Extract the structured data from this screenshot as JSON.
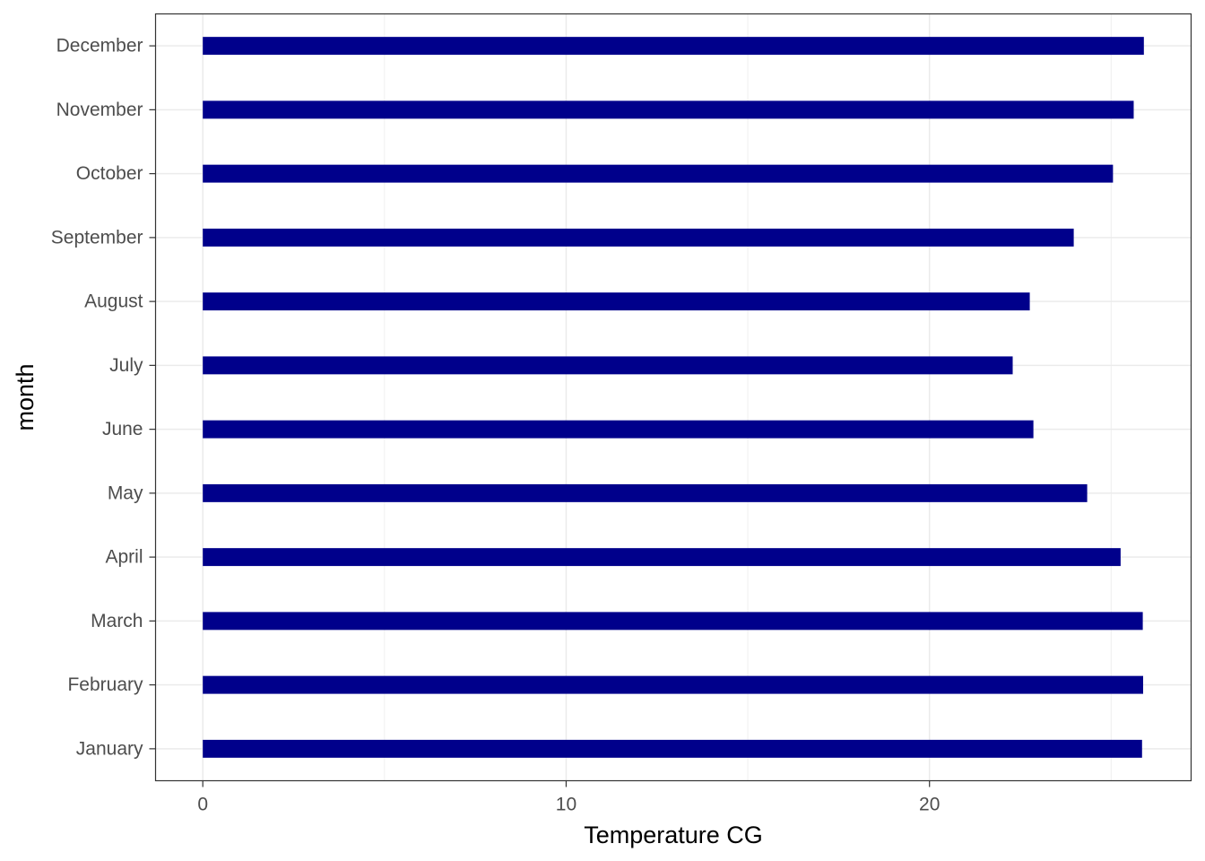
{
  "chart_data": {
    "type": "bar",
    "orientation": "horizontal",
    "categories": [
      "January",
      "February",
      "March",
      "April",
      "May",
      "June",
      "July",
      "August",
      "September",
      "October",
      "November",
      "December"
    ],
    "values": [
      25.85,
      25.88,
      25.87,
      25.26,
      24.34,
      22.86,
      22.29,
      22.76,
      23.97,
      25.05,
      25.62,
      25.9
    ],
    "xlabel": "Temperature CG",
    "ylabel": "month",
    "xticks": [
      0,
      10,
      20
    ],
    "xlim": [
      -1.3,
      27.2
    ],
    "bar_color": "#00008B",
    "grid": true,
    "legend": "none"
  }
}
